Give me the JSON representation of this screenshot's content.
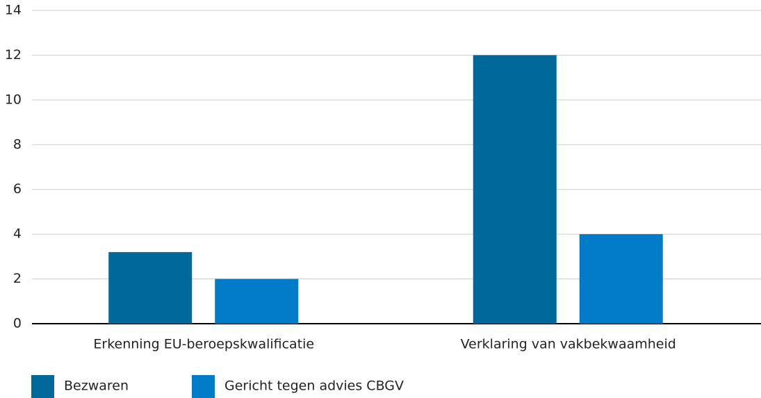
{
  "chart_data": {
    "type": "bar",
    "categories": [
      "Erkenning EU-beroepskwalificatie",
      "Verklaring van vakbekwaamheid"
    ],
    "series": [
      {
        "name": "Bezwaren",
        "color": "#01689b",
        "values": [
          3.2,
          12
        ]
      },
      {
        "name": "Gericht tegen advies CBGV",
        "color": "#007bc7",
        "values": [
          2,
          4
        ]
      }
    ],
    "ylim": [
      0,
      14
    ],
    "yticks": [
      0,
      2,
      4,
      6,
      8,
      10,
      12,
      14
    ],
    "grid": true
  }
}
